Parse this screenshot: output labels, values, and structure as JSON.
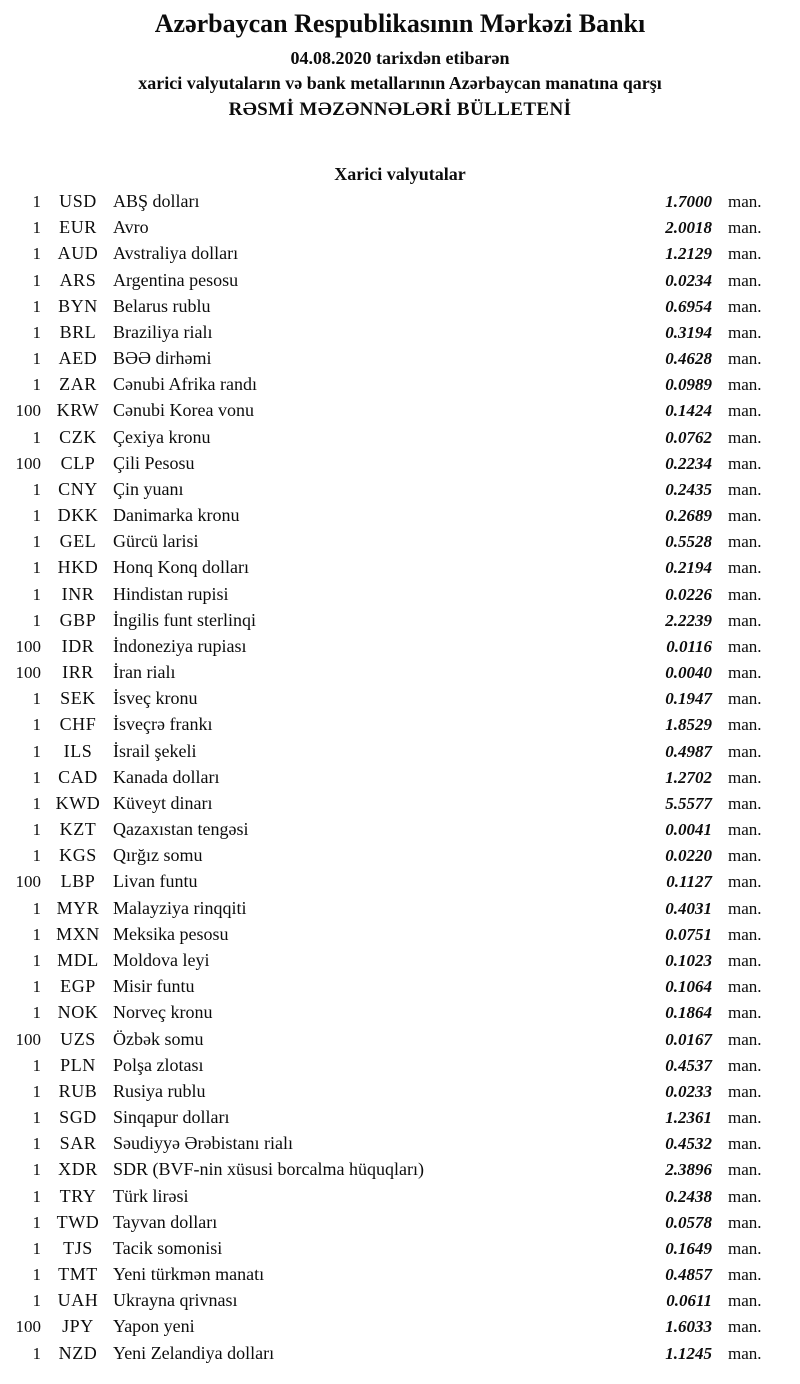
{
  "header": {
    "title": "Azərbaycan Respublikasının Mərkəzi Bankı",
    "date_line": "04.08.2020 tarixdən etibarən",
    "subtitle": "xarici valyutaların və bank metallarının Azərbaycan manatına qarşı",
    "bulletin_line": "RƏSMİ MƏZƏNNƏLƏRİ BÜLLETENİ"
  },
  "section": {
    "title": "Xarici valyutalar"
  },
  "rates": [
    {
      "qty": "1",
      "code": "USD",
      "name": "ABŞ dolları",
      "rate": "1.7000",
      "unit": "man."
    },
    {
      "qty": "1",
      "code": "EUR",
      "name": "Avro",
      "rate": "2.0018",
      "unit": "man."
    },
    {
      "qty": "1",
      "code": "AUD",
      "name": "Avstraliya dolları",
      "rate": "1.2129",
      "unit": "man."
    },
    {
      "qty": "1",
      "code": "ARS",
      "name": "Argentina pesosu",
      "rate": "0.0234",
      "unit": "man."
    },
    {
      "qty": "1",
      "code": "BYN",
      "name": "Belarus rublu",
      "rate": "0.6954",
      "unit": "man."
    },
    {
      "qty": "1",
      "code": "BRL",
      "name": "Braziliya rialı",
      "rate": "0.3194",
      "unit": "man."
    },
    {
      "qty": "1",
      "code": "AED",
      "name": "BƏƏ dirhəmi",
      "rate": "0.4628",
      "unit": "man."
    },
    {
      "qty": "1",
      "code": "ZAR",
      "name": "Cənubi Afrika randı",
      "rate": "0.0989",
      "unit": "man."
    },
    {
      "qty": "100",
      "code": "KRW",
      "name": "Cənubi Korea vonu",
      "rate": "0.1424",
      "unit": "man."
    },
    {
      "qty": "1",
      "code": "CZK",
      "name": "Çexiya kronu",
      "rate": "0.0762",
      "unit": "man."
    },
    {
      "qty": "100",
      "code": "CLP",
      "name": "Çili Pesosu",
      "rate": "0.2234",
      "unit": "man."
    },
    {
      "qty": "1",
      "code": "CNY",
      "name": "Çin yuanı",
      "rate": "0.2435",
      "unit": "man."
    },
    {
      "qty": "1",
      "code": "DKK",
      "name": "Danimarka kronu",
      "rate": "0.2689",
      "unit": "man."
    },
    {
      "qty": "1",
      "code": "GEL",
      "name": "Gürcü larisi",
      "rate": "0.5528",
      "unit": "man."
    },
    {
      "qty": "1",
      "code": "HKD",
      "name": "Honq Konq dolları",
      "rate": "0.2194",
      "unit": "man."
    },
    {
      "qty": "1",
      "code": "INR",
      "name": "Hindistan rupisi",
      "rate": "0.0226",
      "unit": "man."
    },
    {
      "qty": "1",
      "code": "GBP",
      "name": "İngilis funt sterlinqi",
      "rate": "2.2239",
      "unit": "man."
    },
    {
      "qty": "100",
      "code": "IDR",
      "name": "İndoneziya rupiası",
      "rate": "0.0116",
      "unit": "man."
    },
    {
      "qty": "100",
      "code": "IRR",
      "name": "İran rialı",
      "rate": "0.0040",
      "unit": "man."
    },
    {
      "qty": "1",
      "code": "SEK",
      "name": "İsveç kronu",
      "rate": "0.1947",
      "unit": "man."
    },
    {
      "qty": "1",
      "code": "CHF",
      "name": "İsveçrə frankı",
      "rate": "1.8529",
      "unit": "man."
    },
    {
      "qty": "1",
      "code": "ILS",
      "name": "İsrail şekeli",
      "rate": "0.4987",
      "unit": "man."
    },
    {
      "qty": "1",
      "code": "CAD",
      "name": "Kanada dolları",
      "rate": "1.2702",
      "unit": "man."
    },
    {
      "qty": "1",
      "code": "KWD",
      "name": "Küveyt dinarı",
      "rate": "5.5577",
      "unit": "man."
    },
    {
      "qty": "1",
      "code": "KZT",
      "name": "Qazaxıstan tengəsi",
      "rate": "0.0041",
      "unit": "man."
    },
    {
      "qty": "1",
      "code": "KGS",
      "name": "Qırğız somu",
      "rate": "0.0220",
      "unit": "man."
    },
    {
      "qty": "100",
      "code": "LBP",
      "name": "Livan funtu",
      "rate": "0.1127",
      "unit": "man."
    },
    {
      "qty": "1",
      "code": "MYR",
      "name": "Malayziya rinqqiti",
      "rate": "0.4031",
      "unit": "man."
    },
    {
      "qty": "1",
      "code": "MXN",
      "name": "Meksika pesosu",
      "rate": "0.0751",
      "unit": "man."
    },
    {
      "qty": "1",
      "code": "MDL",
      "name": "Moldova leyi",
      "rate": "0.1023",
      "unit": "man."
    },
    {
      "qty": "1",
      "code": "EGP",
      "name": "Misir funtu",
      "rate": "0.1064",
      "unit": "man."
    },
    {
      "qty": "1",
      "code": "NOK",
      "name": "Norveç kronu",
      "rate": "0.1864",
      "unit": "man."
    },
    {
      "qty": "100",
      "code": "UZS",
      "name": "Özbək somu",
      "rate": "0.0167",
      "unit": "man."
    },
    {
      "qty": "1",
      "code": "PLN",
      "name": "Polşa zlotası",
      "rate": "0.4537",
      "unit": "man."
    },
    {
      "qty": "1",
      "code": "RUB",
      "name": "Rusiya rublu",
      "rate": "0.0233",
      "unit": "man."
    },
    {
      "qty": "1",
      "code": "SGD",
      "name": "Sinqapur dolları",
      "rate": "1.2361",
      "unit": "man."
    },
    {
      "qty": "1",
      "code": "SAR",
      "name": "Səudiyyə Ərəbistanı rialı",
      "rate": "0.4532",
      "unit": "man."
    },
    {
      "qty": "1",
      "code": "XDR",
      "name": "SDR (BVF-nin xüsusi borcalma hüquqları)",
      "rate": "2.3896",
      "unit": "man."
    },
    {
      "qty": "1",
      "code": "TRY",
      "name": "Türk lirəsi",
      "rate": "0.2438",
      "unit": "man."
    },
    {
      "qty": "1",
      "code": "TWD",
      "name": "Tayvan dolları",
      "rate": "0.0578",
      "unit": "man."
    },
    {
      "qty": "1",
      "code": "TJS",
      "name": "Tacik somonisi",
      "rate": "0.1649",
      "unit": "man."
    },
    {
      "qty": "1",
      "code": "TMT",
      "name": "Yeni türkmən manatı",
      "rate": "0.4857",
      "unit": "man."
    },
    {
      "qty": "1",
      "code": "UAH",
      "name": "Ukrayna qrivnası",
      "rate": "0.0611",
      "unit": "man."
    },
    {
      "qty": "100",
      "code": "JPY",
      "name": "Yapon yeni",
      "rate": "1.6033",
      "unit": "man."
    },
    {
      "qty": "1",
      "code": "NZD",
      "name": "Yeni Zelandiya dolları",
      "rate": "1.1245",
      "unit": "man."
    }
  ]
}
